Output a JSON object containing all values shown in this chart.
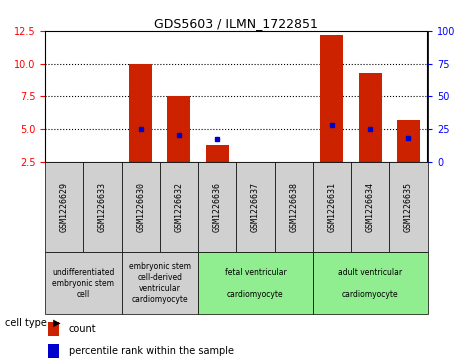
{
  "title": "GDS5603 / ILMN_1722851",
  "samples": [
    "GSM1226629",
    "GSM1226633",
    "GSM1226630",
    "GSM1226632",
    "GSM1226636",
    "GSM1226637",
    "GSM1226638",
    "GSM1226631",
    "GSM1226634",
    "GSM1226635"
  ],
  "count_values": [
    2.5,
    2.5,
    10.0,
    7.5,
    3.8,
    2.5,
    2.5,
    12.2,
    9.3,
    5.7
  ],
  "percentile_values": [
    null,
    null,
    25,
    20,
    17,
    null,
    null,
    28,
    25,
    18
  ],
  "cell_types": [
    {
      "label": "undifferentiated\nembryonic stem\ncell",
      "span": [
        0,
        2
      ],
      "color": "#d0d0d0"
    },
    {
      "label": "embryonic stem\ncell-derived\nventricular\ncardiomyocyte",
      "span": [
        2,
        4
      ],
      "color": "#d0d0d0"
    },
    {
      "label": "fetal ventricular\n\ncardiomyocyte",
      "span": [
        4,
        7
      ],
      "color": "#90ee90"
    },
    {
      "label": "adult ventricular\n\ncardiomyocyte",
      "span": [
        7,
        10
      ],
      "color": "#90ee90"
    }
  ],
  "ylim_left": [
    2.5,
    12.5
  ],
  "ylim_right": [
    0,
    100
  ],
  "yticks_left": [
    2.5,
    5.0,
    7.5,
    10.0,
    12.5
  ],
  "yticks_right": [
    0,
    25,
    50,
    75,
    100
  ],
  "bar_color": "#cc2200",
  "percentile_color": "#0000cc",
  "sample_box_color": "#d0d0d0",
  "grid_linestyle": ":",
  "grid_color": "black",
  "title_fontsize": 9,
  "tick_fontsize": 7,
  "label_fontsize": 6,
  "legend_fontsize": 7
}
